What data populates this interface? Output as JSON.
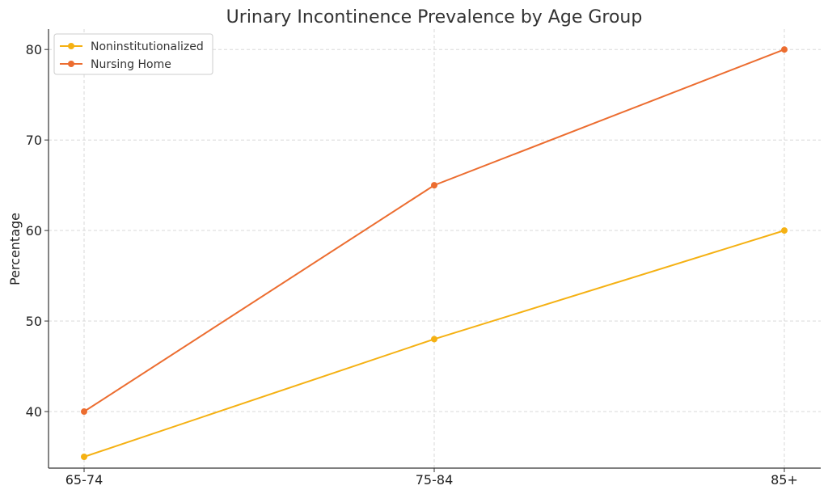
{
  "chart_data": {
    "type": "line",
    "title": "Urinary Incontinence Prevalence by Age Group",
    "xlabel": "",
    "ylabel": "Percentage",
    "categories": [
      "65-74",
      "75-84",
      "85+"
    ],
    "yticks": [
      40,
      50,
      60,
      70,
      80
    ],
    "ylim": [
      33.75,
      82.25
    ],
    "grid": true,
    "legend_position": "top-left",
    "series": [
      {
        "name": "Noninstitutionalized",
        "values": [
          35,
          48,
          60
        ],
        "color": "#f5b113"
      },
      {
        "name": "Nursing Home",
        "values": [
          40,
          65,
          80
        ],
        "color": "#ec6d30"
      }
    ]
  }
}
